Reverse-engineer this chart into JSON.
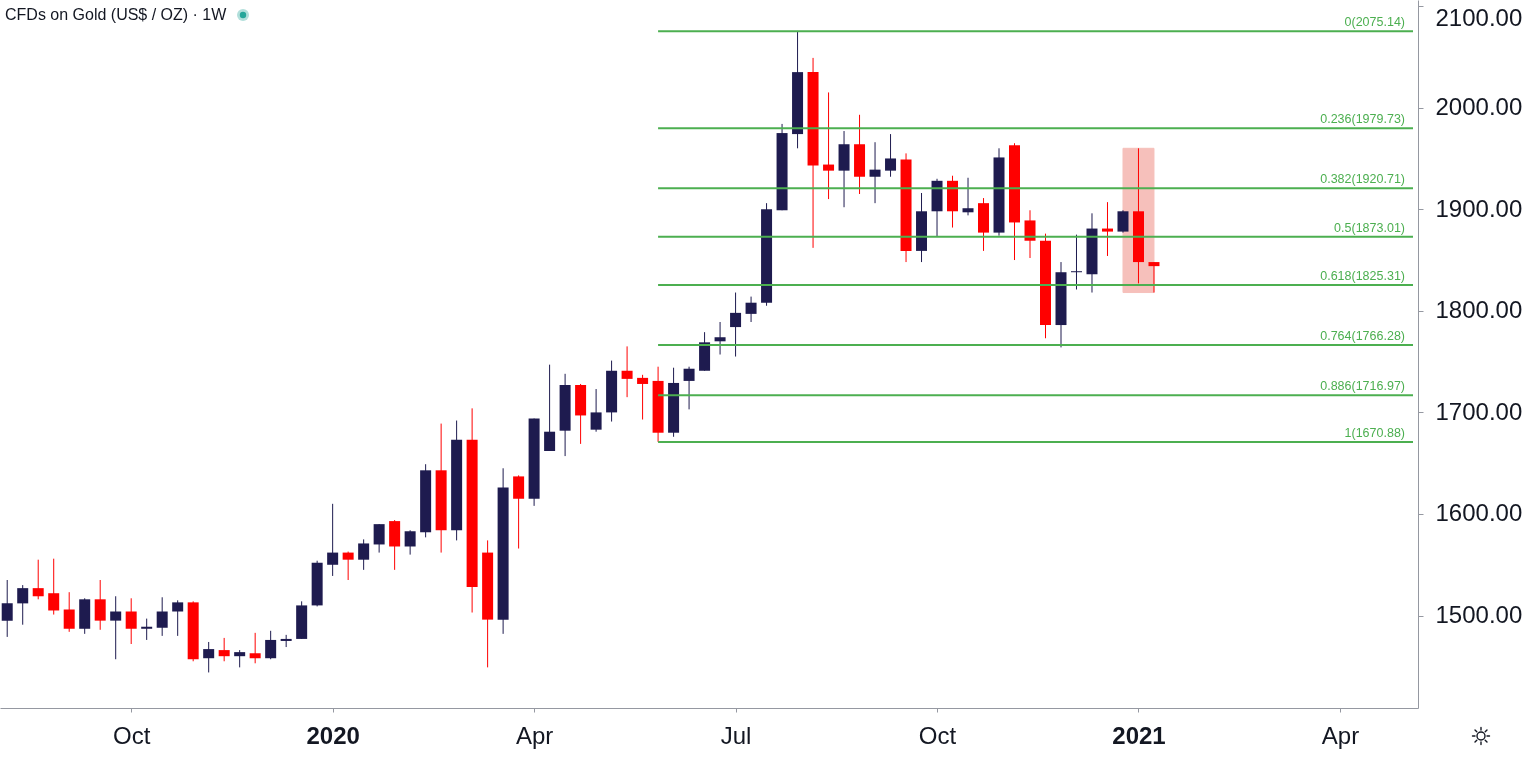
{
  "chart_data": {
    "type": "candlestick",
    "title": "CFDs on Gold (US$ / OZ) · 1W",
    "x": [
      "2019-08-12",
      "2019-08-19",
      "2019-08-26",
      "2019-09-02",
      "2019-09-09",
      "2019-09-16",
      "2019-09-23",
      "2019-09-30",
      "2019-10-07",
      "2019-10-14",
      "2019-10-21",
      "2019-10-28",
      "2019-11-04",
      "2019-11-11",
      "2019-11-18",
      "2019-11-25",
      "2019-12-02",
      "2019-12-09",
      "2019-12-16",
      "2019-12-23",
      "2019-12-30",
      "2020-01-06",
      "2020-01-13",
      "2020-01-20",
      "2020-01-27",
      "2020-02-03",
      "2020-02-10",
      "2020-02-17",
      "2020-02-24",
      "2020-03-02",
      "2020-03-09",
      "2020-03-16",
      "2020-03-23",
      "2020-03-30",
      "2020-04-06",
      "2020-04-13",
      "2020-04-20",
      "2020-04-27",
      "2020-05-04",
      "2020-05-11",
      "2020-05-18",
      "2020-05-25",
      "2020-06-01",
      "2020-06-08",
      "2020-06-15",
      "2020-06-22",
      "2020-06-29",
      "2020-07-06",
      "2020-07-13",
      "2020-07-20",
      "2020-07-27",
      "2020-08-03",
      "2020-08-10",
      "2020-08-17",
      "2020-08-24",
      "2020-08-31",
      "2020-09-07",
      "2020-09-14",
      "2020-09-21",
      "2020-09-28",
      "2020-10-05",
      "2020-10-12",
      "2020-10-19",
      "2020-10-26",
      "2020-11-02",
      "2020-11-09",
      "2020-11-16",
      "2020-11-23",
      "2020-11-30",
      "2020-12-07",
      "2020-12-14",
      "2020-12-21",
      "2020-12-28",
      "2021-01-04",
      "2021-01-11"
    ],
    "ohlc": [
      [
        1495,
        1535,
        1479,
        1512
      ],
      [
        1512,
        1530,
        1491,
        1527
      ],
      [
        1527,
        1555,
        1516,
        1519
      ],
      [
        1522,
        1556,
        1501,
        1505
      ],
      [
        1506,
        1523,
        1484,
        1487
      ],
      [
        1487,
        1517,
        1482,
        1516
      ],
      [
        1516,
        1535,
        1486,
        1495
      ],
      [
        1495,
        1519,
        1457,
        1504
      ],
      [
        1504,
        1517,
        1472,
        1487
      ],
      [
        1487,
        1497,
        1476,
        1489
      ],
      [
        1488,
        1518,
        1480,
        1504
      ],
      [
        1504,
        1515,
        1480,
        1513
      ],
      [
        1513,
        1514,
        1455,
        1457
      ],
      [
        1458,
        1474,
        1444,
        1467
      ],
      [
        1466,
        1478,
        1455,
        1460
      ],
      [
        1460,
        1466,
        1449,
        1464
      ],
      [
        1463,
        1483,
        1453,
        1458
      ],
      [
        1458,
        1485,
        1457,
        1476
      ],
      [
        1475,
        1481,
        1469,
        1477
      ],
      [
        1477,
        1514,
        1477,
        1510
      ],
      [
        1510,
        1554,
        1509,
        1552
      ],
      [
        1550,
        1610,
        1539,
        1562
      ],
      [
        1562,
        1563,
        1535,
        1555
      ],
      [
        1555,
        1575,
        1545,
        1571
      ],
      [
        1570,
        1590,
        1562,
        1590
      ],
      [
        1593,
        1594,
        1545,
        1568
      ],
      [
        1568,
        1584,
        1560,
        1583
      ],
      [
        1582,
        1649,
        1577,
        1643
      ],
      [
        1643,
        1689,
        1562,
        1584
      ],
      [
        1584,
        1692,
        1574,
        1673
      ],
      [
        1673,
        1704,
        1503,
        1528
      ],
      [
        1562,
        1574,
        1449,
        1496
      ],
      [
        1496,
        1645,
        1482,
        1626
      ],
      [
        1637,
        1638,
        1566,
        1615
      ],
      [
        1615,
        1694,
        1608,
        1694
      ],
      [
        1662,
        1747,
        1662,
        1681
      ],
      [
        1682,
        1738,
        1657,
        1727
      ],
      [
        1727,
        1728,
        1669,
        1697
      ],
      [
        1683,
        1723,
        1681,
        1700
      ],
      [
        1700,
        1751,
        1691,
        1741
      ],
      [
        1741,
        1765,
        1715,
        1733
      ],
      [
        1734,
        1737,
        1693,
        1728
      ],
      [
        1731,
        1745,
        1671,
        1680
      ],
      [
        1680,
        1744,
        1676,
        1729
      ],
      [
        1731,
        1745,
        1703,
        1743
      ],
      [
        1741,
        1779,
        1741,
        1769
      ],
      [
        1770,
        1789,
        1757,
        1774
      ],
      [
        1784,
        1818,
        1755,
        1798
      ],
      [
        1797,
        1814,
        1789,
        1808
      ],
      [
        1808,
        1906,
        1805,
        1900
      ],
      [
        1899,
        1984,
        1899,
        1975
      ],
      [
        1974,
        2075,
        1960,
        2035
      ],
      [
        2035,
        2049,
        1862,
        1943
      ],
      [
        1944,
        2015,
        1910,
        1938
      ],
      [
        1938,
        1977,
        1902,
        1964
      ],
      [
        1964,
        1993,
        1915,
        1932
      ],
      [
        1932,
        1966,
        1906,
        1939
      ],
      [
        1938,
        1974,
        1932,
        1950
      ],
      [
        1949,
        1955,
        1848,
        1859
      ],
      [
        1859,
        1916,
        1848,
        1898
      ],
      [
        1898,
        1930,
        1873,
        1928
      ],
      [
        1928,
        1933,
        1882,
        1898
      ],
      [
        1897,
        1931,
        1894,
        1901
      ],
      [
        1906,
        1911,
        1859,
        1877
      ],
      [
        1877,
        1960,
        1874,
        1951
      ],
      [
        1963,
        1965,
        1850,
        1887
      ],
      [
        1889,
        1899,
        1852,
        1869
      ],
      [
        1869,
        1876,
        1773,
        1786
      ],
      [
        1786,
        1848,
        1764,
        1838
      ],
      [
        1838,
        1875,
        1821,
        1839
      ],
      [
        1836,
        1896,
        1818,
        1881
      ],
      [
        1881,
        1907,
        1854,
        1878
      ],
      [
        1878,
        1899,
        1877,
        1898
      ],
      [
        1898,
        1960,
        1827,
        1848
      ],
      [
        1848,
        1848,
        1818,
        1844
      ]
    ],
    "colors": [
      "#1e1b4f",
      "#1e1b4f",
      "#ff0000",
      "#ff0000",
      "#ff0000",
      "#1e1b4f",
      "#ff0000",
      "#1e1b4f",
      "#ff0000",
      "#1e1b4f",
      "#1e1b4f",
      "#1e1b4f",
      "#ff0000",
      "#1e1b4f",
      "#ff0000",
      "#1e1b4f",
      "#ff0000",
      "#1e1b4f",
      "#1e1b4f",
      "#1e1b4f",
      "#1e1b4f",
      "#1e1b4f",
      "#ff0000",
      "#1e1b4f",
      "#1e1b4f",
      "#ff0000",
      "#1e1b4f",
      "#1e1b4f",
      "#ff0000",
      "#1e1b4f",
      "#ff0000",
      "#ff0000",
      "#1e1b4f",
      "#ff0000",
      "#1e1b4f",
      "#1e1b4f",
      "#1e1b4f",
      "#ff0000",
      "#1e1b4f",
      "#1e1b4f",
      "#ff0000",
      "#ff0000",
      "#ff0000",
      "#1e1b4f",
      "#1e1b4f",
      "#1e1b4f",
      "#1e1b4f",
      "#1e1b4f",
      "#1e1b4f",
      "#1e1b4f",
      "#1e1b4f",
      "#1e1b4f",
      "#ff0000",
      "#ff0000",
      "#1e1b4f",
      "#ff0000",
      "#1e1b4f",
      "#1e1b4f",
      "#ff0000",
      "#1e1b4f",
      "#1e1b4f",
      "#ff0000",
      "#1e1b4f",
      "#ff0000",
      "#1e1b4f",
      "#ff0000",
      "#ff0000",
      "#ff0000",
      "#1e1b4f",
      "#1e1b4f",
      "#1e1b4f",
      "#ff0000",
      "#1e1b4f",
      "#ff0000",
      "#ff0000"
    ],
    "xlim": [
      "2019-08-11",
      "2021-05-08"
    ],
    "xticks": [
      {
        "value": "2019-10-07",
        "label": "Oct"
      },
      {
        "value": "2020-01-06",
        "label": "2020"
      },
      {
        "value": "2020-04-06",
        "label": "Apr"
      },
      {
        "value": "2020-07-06",
        "label": "Jul"
      },
      {
        "value": "2020-10-05",
        "label": "Oct"
      },
      {
        "value": "2021-01-04",
        "label": "2021"
      },
      {
        "value": "2021-04-05",
        "label": "Apr"
      }
    ],
    "ylim": [
      1409,
      2106
    ],
    "yticks": [
      {
        "value": 1500,
        "label": "1500.00"
      },
      {
        "value": 1600,
        "label": "1600.00"
      },
      {
        "value": 1700,
        "label": "1700.00"
      },
      {
        "value": 1800,
        "label": "1800.00"
      },
      {
        "value": 1900,
        "label": "1900.00"
      },
      {
        "value": 2000,
        "label": "2000.00"
      },
      {
        "value": 2100,
        "label": "2100.00"
      }
    ],
    "ref_lines": [
      {
        "axis": "y",
        "value": 2075.14,
        "label": "0(2075.14)",
        "color": "#4caf50"
      },
      {
        "axis": "y",
        "value": 1979.73,
        "label": "0.236(1979.73)",
        "color": "#4caf50"
      },
      {
        "axis": "y",
        "value": 1920.71,
        "label": "0.382(1920.71)",
        "color": "#4caf50"
      },
      {
        "axis": "y",
        "value": 1873.01,
        "label": "0.5(1873.01)",
        "color": "#4caf50"
      },
      {
        "axis": "y",
        "value": 1825.31,
        "label": "0.618(1825.31)",
        "color": "#4caf50"
      },
      {
        "axis": "y",
        "value": 1766.28,
        "label": "0.764(1766.28)",
        "color": "#4caf50"
      },
      {
        "axis": "y",
        "value": 1716.97,
        "label": "0.886(1716.97)",
        "color": "#4caf50"
      },
      {
        "axis": "y",
        "value": 1670.88,
        "label": "1(1670.88)",
        "color": "#4caf50"
      }
    ],
    "bands": [
      {
        "axis": "x",
        "from": "2020-12-28",
        "to": "2021-01-11",
        "color": "#f6c0bb"
      }
    ]
  }
}
